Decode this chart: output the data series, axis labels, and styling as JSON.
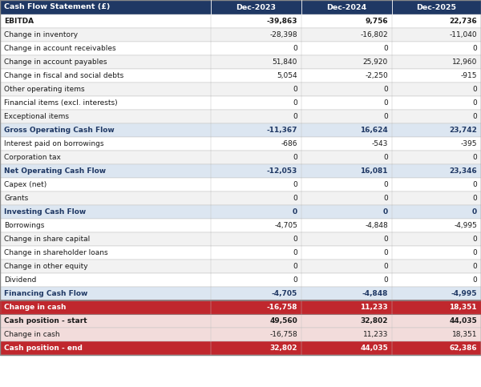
{
  "title": "Cash Flow Statement (£)",
  "columns": [
    "Dec-2023",
    "Dec-2024",
    "Dec-2025"
  ],
  "rows": [
    {
      "label": "EBITDA",
      "values": [
        "-39,863",
        "9,756",
        "22,736"
      ],
      "bold": true,
      "type": "bold_row"
    },
    {
      "label": "Change in inventory",
      "values": [
        "-28,398",
        "-16,802",
        "-11,040"
      ],
      "bold": false,
      "type": "normal"
    },
    {
      "label": "Change in account receivables",
      "values": [
        "0",
        "0",
        "0"
      ],
      "bold": false,
      "type": "normal"
    },
    {
      "label": "Change in account payables",
      "values": [
        "51,840",
        "25,920",
        "12,960"
      ],
      "bold": false,
      "type": "normal"
    },
    {
      "label": "Change in fiscal and social debts",
      "values": [
        "5,054",
        "-2,250",
        "-915"
      ],
      "bold": false,
      "type": "normal"
    },
    {
      "label": "Other operating items",
      "values": [
        "0",
        "0",
        "0"
      ],
      "bold": false,
      "type": "normal"
    },
    {
      "label": "Financial items (excl. interests)",
      "values": [
        "0",
        "0",
        "0"
      ],
      "bold": false,
      "type": "normal"
    },
    {
      "label": "Exceptional items",
      "values": [
        "0",
        "0",
        "0"
      ],
      "bold": false,
      "type": "normal"
    },
    {
      "label": "Gross Operating Cash Flow",
      "values": [
        "-11,367",
        "16,624",
        "23,742"
      ],
      "bold": true,
      "type": "subtotal"
    },
    {
      "label": "Interest paid on borrowings",
      "values": [
        "-686",
        "-543",
        "-395"
      ],
      "bold": false,
      "type": "normal"
    },
    {
      "label": "Corporation tax",
      "values": [
        "0",
        "0",
        "0"
      ],
      "bold": false,
      "type": "normal"
    },
    {
      "label": "Net Operating Cash Flow",
      "values": [
        "-12,053",
        "16,081",
        "23,346"
      ],
      "bold": true,
      "type": "subtotal"
    },
    {
      "label": "Capex (net)",
      "values": [
        "0",
        "0",
        "0"
      ],
      "bold": false,
      "type": "normal"
    },
    {
      "label": "Grants",
      "values": [
        "0",
        "0",
        "0"
      ],
      "bold": false,
      "type": "normal"
    },
    {
      "label": "Investing Cash Flow",
      "values": [
        "0",
        "0",
        "0"
      ],
      "bold": true,
      "type": "subtotal"
    },
    {
      "label": "Borrowings",
      "values": [
        "-4,705",
        "-4,848",
        "-4,995"
      ],
      "bold": false,
      "type": "normal"
    },
    {
      "label": "Change in share capital",
      "values": [
        "0",
        "0",
        "0"
      ],
      "bold": false,
      "type": "normal"
    },
    {
      "label": "Change in shareholder loans",
      "values": [
        "0",
        "0",
        "0"
      ],
      "bold": false,
      "type": "normal"
    },
    {
      "label": "Change in other equity",
      "values": [
        "0",
        "0",
        "0"
      ],
      "bold": false,
      "type": "normal"
    },
    {
      "label": "Dividend",
      "values": [
        "0",
        "0",
        "0"
      ],
      "bold": false,
      "type": "normal"
    },
    {
      "label": "Financing Cash Flow",
      "values": [
        "-4,705",
        "-4,848",
        "-4,995"
      ],
      "bold": true,
      "type": "subtotal"
    },
    {
      "label": "Change in cash",
      "values": [
        "-16,758",
        "11,233",
        "18,351"
      ],
      "bold": true,
      "type": "red"
    },
    {
      "label": "Cash position - start",
      "values": [
        "49,560",
        "32,802",
        "44,035"
      ],
      "bold": true,
      "type": "pink_bold"
    },
    {
      "label": "Change in cash",
      "values": [
        "-16,758",
        "11,233",
        "18,351"
      ],
      "bold": false,
      "type": "pink"
    },
    {
      "label": "Cash position - end",
      "values": [
        "32,802",
        "44,035",
        "62,386"
      ],
      "bold": true,
      "type": "pink_bold_red"
    }
  ],
  "header_bg": "#1f3864",
  "header_fg": "#ffffff",
  "subtotal_bg": "#dce6f1",
  "subtotal_fg": "#1f3864",
  "bold_row_bg": "#ffffff",
  "bold_row_fg": "#1a1a1a",
  "red_bg": "#c0272d",
  "red_fg": "#ffffff",
  "pink_bg": "#f2dcdb",
  "pink_fg": "#1a1a1a",
  "pink_bold_red_bg": "#c0272d",
  "pink_bold_red_fg": "#ffffff",
  "normal_bg_even": "#ffffff",
  "normal_bg_odd": "#f2f2f2",
  "normal_fg": "#1a1a1a",
  "border_color": "#c0c0c0",
  "divider_color": "#ffffff"
}
